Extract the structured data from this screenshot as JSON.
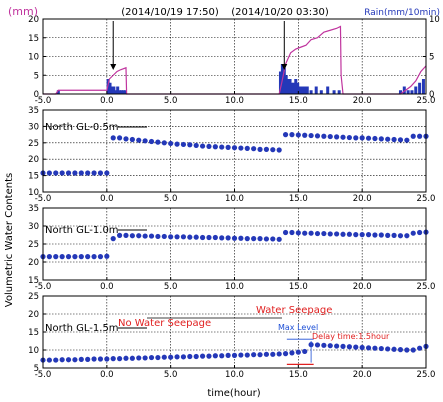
{
  "chart_data": {
    "type": "multi-panel",
    "shared_x": {
      "label": "time(hour)",
      "lim": [
        -5,
        25
      ],
      "ticks": [
        -5,
        0,
        5,
        10,
        15,
        20,
        25
      ],
      "tick_labels": [
        "-5.0",
        "0.0",
        "5.0",
        "10.0",
        "15.0",
        "20.0",
        "25.0"
      ]
    },
    "shared_ylabel": "Volumetric Water Contents",
    "colors": {
      "water_content": "#2438b8",
      "rain_cumulative": "#c0349e",
      "rain_bars": "#2438b8",
      "annotation_red": "#e02020",
      "annotation_blue": "#1d4fd6"
    },
    "panels": [
      {
        "id": "rain",
        "type": "bar+line",
        "left_axis": {
          "label": "(mm)",
          "lim": [
            0,
            20
          ],
          "ticks": [
            0,
            5,
            10,
            15,
            20
          ],
          "tick_labels": [
            "0",
            "5",
            "10",
            "15",
            "20"
          ],
          "color": "#c0349e"
        },
        "right_axis": {
          "label": "Rain(mm/10min)",
          "lim": [
            0,
            10
          ],
          "ticks": [
            0,
            5,
            10
          ],
          "tick_labels": [
            "0",
            "5",
            "10"
          ],
          "color": "#2438b8"
        },
        "annotations": [
          {
            "text": "(2014/10/19 17:50)",
            "x": 0.3
          },
          {
            "text": "(2014/10/20 03:30)",
            "x": 13.8
          }
        ],
        "bars": {
          "x": [
            -3.8,
            0.1,
            0.25,
            0.4,
            0.55,
            0.7,
            0.85,
            1.0,
            1.15,
            1.3,
            1.45,
            13.6,
            13.75,
            13.9,
            14.05,
            14.2,
            14.35,
            14.5,
            14.65,
            14.8,
            14.95,
            15.1,
            15.3,
            15.5,
            15.7,
            16.0,
            16.4,
            16.8,
            17.3,
            17.8,
            18.2,
            23.0,
            23.3,
            23.6,
            23.9,
            24.2,
            24.5,
            24.8
          ],
          "values": [
            0.5,
            2.0,
            1.5,
            1.0,
            1.0,
            0.5,
            1.0,
            0.5,
            0.5,
            0.5,
            0.5,
            3.0,
            4.0,
            3.5,
            2.5,
            2.0,
            2.0,
            1.5,
            1.5,
            2.0,
            1.5,
            1.0,
            1.0,
            1.0,
            1.0,
            0.5,
            1.0,
            0.5,
            1.0,
            0.5,
            0.5,
            0.5,
            1.0,
            0.5,
            0.5,
            1.0,
            1.5,
            2.0
          ]
        },
        "line": {
          "x": [
            -5,
            -4,
            -3.8,
            0.0,
            0.2,
            0.5,
            0.8,
            1.1,
            1.5,
            1.55,
            13.5,
            13.7,
            14.0,
            14.4,
            14.8,
            15.2,
            15.6,
            16.0,
            16.5,
            17.0,
            17.5,
            18.0,
            18.3,
            18.35,
            18.5,
            23.0,
            23.4,
            23.8,
            24.2,
            24.6,
            25.0
          ],
          "y": [
            0,
            0,
            1.0,
            1.0,
            4.0,
            5.0,
            6.0,
            6.5,
            7.0,
            0,
            0,
            3.0,
            8.0,
            11.0,
            12.0,
            12.5,
            13.0,
            14.5,
            15.0,
            16.5,
            17.0,
            17.5,
            18.0,
            5.0,
            0,
            0,
            1.0,
            2.0,
            3.5,
            6.0,
            7.5
          ]
        },
        "vertical_arrows_at": [
          0.5,
          13.9
        ]
      },
      {
        "id": "gl05",
        "type": "scatter",
        "label": "North GL-0.5m",
        "ylim": [
          10,
          35
        ],
        "yticks": [
          10,
          15,
          20,
          25,
          30,
          35
        ],
        "ytick_labels": [
          "10",
          "15",
          "20",
          "25",
          "30",
          "35"
        ],
        "x": [
          -5.0,
          -4.5,
          -4.0,
          -3.5,
          -3.0,
          -2.5,
          -2.0,
          -1.5,
          -1.0,
          -0.5,
          0.0,
          0.5,
          1.0,
          1.5,
          2.0,
          2.5,
          3.0,
          3.5,
          4.0,
          4.5,
          5.0,
          5.5,
          6.0,
          6.5,
          7.0,
          7.5,
          8.0,
          8.5,
          9.0,
          9.5,
          10.0,
          10.5,
          11.0,
          11.5,
          12.0,
          12.5,
          13.0,
          13.5,
          14.0,
          14.5,
          15.0,
          15.5,
          16.0,
          16.5,
          17.0,
          17.5,
          18.0,
          18.5,
          19.0,
          19.5,
          20.0,
          20.5,
          21.0,
          21.5,
          22.0,
          22.5,
          23.0,
          23.5,
          24.0,
          24.5,
          25.0
        ],
        "y": [
          15.8,
          15.8,
          15.8,
          15.8,
          15.8,
          15.8,
          15.8,
          15.8,
          15.8,
          15.8,
          15.8,
          26.5,
          26.5,
          26.2,
          26.0,
          25.8,
          25.6,
          25.4,
          25.2,
          25.0,
          24.8,
          24.6,
          24.5,
          24.4,
          24.2,
          24.0,
          23.9,
          23.8,
          23.7,
          23.6,
          23.5,
          23.4,
          23.3,
          23.2,
          23.0,
          23.0,
          22.9,
          22.8,
          27.5,
          27.5,
          27.4,
          27.3,
          27.2,
          27.1,
          27.0,
          26.9,
          26.8,
          26.7,
          26.6,
          26.5,
          26.5,
          26.4,
          26.3,
          26.2,
          26.1,
          26.0,
          25.9,
          25.8,
          27.0,
          27.0,
          27.0
        ]
      },
      {
        "id": "gl10",
        "type": "scatter",
        "label": "North GL-1.0m",
        "ylim": [
          15,
          35
        ],
        "yticks": [
          15,
          20,
          25,
          30,
          35
        ],
        "ytick_labels": [
          "15",
          "20",
          "25",
          "30",
          "35"
        ],
        "x": [
          -5.0,
          -4.5,
          -4.0,
          -3.5,
          -3.0,
          -2.5,
          -2.0,
          -1.5,
          -1.0,
          -0.5,
          0.0,
          0.5,
          1.0,
          1.5,
          2.0,
          2.5,
          3.0,
          3.5,
          4.0,
          4.5,
          5.0,
          5.5,
          6.0,
          6.5,
          7.0,
          7.5,
          8.0,
          8.5,
          9.0,
          9.5,
          10.0,
          10.5,
          11.0,
          11.5,
          12.0,
          12.5,
          13.0,
          13.5,
          14.0,
          14.5,
          15.0,
          15.5,
          16.0,
          16.5,
          17.0,
          17.5,
          18.0,
          18.5,
          19.0,
          19.5,
          20.0,
          20.5,
          21.0,
          21.5,
          22.0,
          22.5,
          23.0,
          23.5,
          24.0,
          24.5,
          25.0
        ],
        "y": [
          21.5,
          21.5,
          21.5,
          21.5,
          21.5,
          21.5,
          21.5,
          21.5,
          21.5,
          21.5,
          21.6,
          26.5,
          27.4,
          27.4,
          27.3,
          27.3,
          27.2,
          27.2,
          27.1,
          27.1,
          27.0,
          27.0,
          27.0,
          26.9,
          26.9,
          26.8,
          26.8,
          26.8,
          26.7,
          26.7,
          26.6,
          26.6,
          26.5,
          26.5,
          26.5,
          26.4,
          26.4,
          26.3,
          28.2,
          28.2,
          28.1,
          28.0,
          28.0,
          27.9,
          27.9,
          27.8,
          27.8,
          27.7,
          27.7,
          27.6,
          27.6,
          27.6,
          27.5,
          27.5,
          27.4,
          27.4,
          27.3,
          27.3,
          28.0,
          28.2,
          28.3
        ]
      },
      {
        "id": "gl15",
        "type": "scatter",
        "label": "North GL-1.5m",
        "ylim": [
          5,
          25
        ],
        "yticks": [
          5,
          10,
          15,
          20,
          25
        ],
        "ytick_labels": [
          "5",
          "10",
          "15",
          "20",
          "25"
        ],
        "x": [
          -5.0,
          -4.5,
          -4.0,
          -3.5,
          -3.0,
          -2.5,
          -2.0,
          -1.5,
          -1.0,
          -0.5,
          0.0,
          0.5,
          1.0,
          1.5,
          2.0,
          2.5,
          3.0,
          3.5,
          4.0,
          4.5,
          5.0,
          5.5,
          6.0,
          6.5,
          7.0,
          7.5,
          8.0,
          8.5,
          9.0,
          9.5,
          10.0,
          10.5,
          11.0,
          11.5,
          12.0,
          12.5,
          13.0,
          13.5,
          14.0,
          14.5,
          15.0,
          15.5,
          16.0,
          16.5,
          17.0,
          17.5,
          18.0,
          18.5,
          19.0,
          19.5,
          20.0,
          20.5,
          21.0,
          21.5,
          22.0,
          22.5,
          23.0,
          23.5,
          24.0,
          24.5,
          25.0
        ],
        "y": [
          7.2,
          7.2,
          7.2,
          7.3,
          7.3,
          7.3,
          7.4,
          7.4,
          7.5,
          7.5,
          7.5,
          7.6,
          7.6,
          7.7,
          7.7,
          7.8,
          7.8,
          7.9,
          7.9,
          8.0,
          8.0,
          8.1,
          8.1,
          8.2,
          8.2,
          8.3,
          8.3,
          8.4,
          8.4,
          8.5,
          8.5,
          8.6,
          8.6,
          8.7,
          8.7,
          8.8,
          8.8,
          8.9,
          9.0,
          9.2,
          9.4,
          9.6,
          11.5,
          11.4,
          11.3,
          11.2,
          11.1,
          11.0,
          10.9,
          10.8,
          10.7,
          10.6,
          10.5,
          10.4,
          10.3,
          10.2,
          10.1,
          10.0,
          10.0,
          10.5,
          11.0
        ],
        "annotations": [
          {
            "text": "No Water Seepage",
            "color": "#e02020"
          },
          {
            "text": "Water Seepage",
            "color": "#e02020"
          },
          {
            "text": "Max Level",
            "color": "#1d4fd6"
          },
          {
            "text": "Delay time:1.5hour",
            "color": "#e02020"
          }
        ]
      }
    ]
  }
}
